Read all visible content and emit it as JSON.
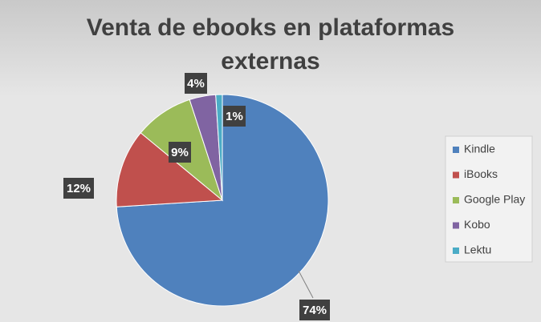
{
  "chart_data": {
    "type": "pie",
    "title": "Venta de ebooks en plataformas externas",
    "categories": [
      "Kindle",
      "iBooks",
      "Google Play",
      "Kobo",
      "Lektu"
    ],
    "values": [
      74,
      12,
      9,
      4,
      1
    ],
    "value_labels": [
      "74%",
      "12%",
      "9%",
      "4%",
      "1%"
    ],
    "colors": [
      "#4f81bd",
      "#c0504d",
      "#9bbb59",
      "#8064a2",
      "#4bacc6"
    ],
    "legend": "right"
  }
}
